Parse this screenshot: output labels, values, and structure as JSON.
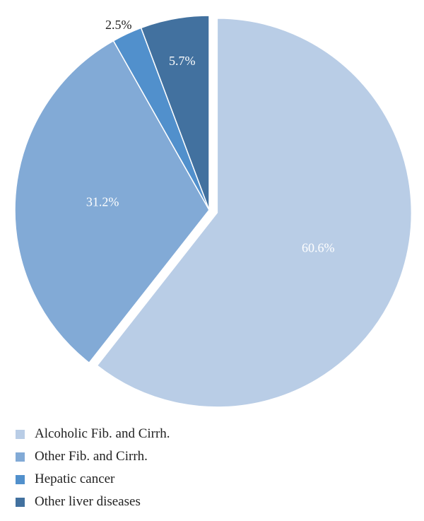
{
  "chart_data": {
    "type": "pie",
    "title": "",
    "slices": [
      {
        "label": "Alcoholic Fib. and Cirrh.",
        "value": 60.6,
        "display": "60.6%",
        "color": "#b9cde6"
      },
      {
        "label": "Other Fib. and Cirrh.",
        "value": 31.2,
        "display": "31.2%",
        "color": "#82aad6"
      },
      {
        "label": "Hepatic cancer",
        "value": 2.5,
        "display": "2.5%",
        "color": "#5190cc"
      },
      {
        "label": "Other liver diseases",
        "value": 5.7,
        "display": "5.7%",
        "color": "#42719f"
      }
    ],
    "exploded_slice": "Alcoholic Fib. and Cirrh.",
    "start_angle": "12 o'clock",
    "direction": "clockwise",
    "legend_position": "bottom-left"
  }
}
